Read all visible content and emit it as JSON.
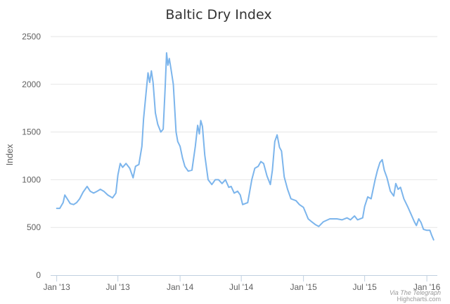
{
  "chart_data": {
    "type": "line",
    "title": "Baltic Dry Index",
    "ylabel": "Index",
    "ylim": [
      0,
      2500
    ],
    "yticks": [
      0,
      500,
      1000,
      1500,
      2000,
      2500
    ],
    "grid": "horizontal",
    "legend": "none",
    "line_color": "#7cb5ec",
    "xticks": [
      {
        "label": "Jan '13",
        "x": "2013-01-01"
      },
      {
        "label": "Jul '13",
        "x": "2013-07-01"
      },
      {
        "label": "Jan '14",
        "x": "2014-01-01"
      },
      {
        "label": "Jul '14",
        "x": "2014-07-01"
      },
      {
        "label": "Jan '15",
        "x": "2015-01-01"
      },
      {
        "label": "Jul '15",
        "x": "2015-07-01"
      },
      {
        "label": "Jan '16",
        "x": "2016-01-01"
      }
    ],
    "series": [
      {
        "points": [
          [
            "2013-01-01",
            700
          ],
          [
            "2013-01-10",
            700
          ],
          [
            "2013-01-20",
            760
          ],
          [
            "2013-01-25",
            840
          ],
          [
            "2013-02-01",
            800
          ],
          [
            "2013-02-10",
            750
          ],
          [
            "2013-02-20",
            740
          ],
          [
            "2013-03-01",
            760
          ],
          [
            "2013-03-10",
            800
          ],
          [
            "2013-03-20",
            870
          ],
          [
            "2013-04-01",
            930
          ],
          [
            "2013-04-10",
            880
          ],
          [
            "2013-04-20",
            860
          ],
          [
            "2013-05-01",
            880
          ],
          [
            "2013-05-10",
            900
          ],
          [
            "2013-05-20",
            880
          ],
          [
            "2013-06-01",
            840
          ],
          [
            "2013-06-15",
            810
          ],
          [
            "2013-06-25",
            860
          ],
          [
            "2013-07-01",
            1050
          ],
          [
            "2013-07-08",
            1170
          ],
          [
            "2013-07-15",
            1130
          ],
          [
            "2013-07-25",
            1170
          ],
          [
            "2013-08-05",
            1120
          ],
          [
            "2013-08-15",
            1020
          ],
          [
            "2013-08-22",
            1140
          ],
          [
            "2013-09-01",
            1160
          ],
          [
            "2013-09-10",
            1350
          ],
          [
            "2013-09-15",
            1640
          ],
          [
            "2013-09-22",
            1900
          ],
          [
            "2013-09-28",
            2120
          ],
          [
            "2013-10-03",
            2020
          ],
          [
            "2013-10-08",
            2140
          ],
          [
            "2013-10-13",
            2020
          ],
          [
            "2013-10-20",
            1700
          ],
          [
            "2013-10-27",
            1580
          ],
          [
            "2013-11-05",
            1500
          ],
          [
            "2013-11-12",
            1530
          ],
          [
            "2013-11-18",
            1980
          ],
          [
            "2013-11-22",
            2330
          ],
          [
            "2013-11-26",
            2200
          ],
          [
            "2013-11-30",
            2270
          ],
          [
            "2013-12-05",
            2160
          ],
          [
            "2013-12-12",
            2000
          ],
          [
            "2013-12-20",
            1500
          ],
          [
            "2013-12-25",
            1400
          ],
          [
            "2014-01-01",
            1350
          ],
          [
            "2014-01-08",
            1230
          ],
          [
            "2014-01-15",
            1140
          ],
          [
            "2014-01-25",
            1090
          ],
          [
            "2014-02-05",
            1100
          ],
          [
            "2014-02-15",
            1350
          ],
          [
            "2014-02-22",
            1570
          ],
          [
            "2014-02-27",
            1480
          ],
          [
            "2014-03-03",
            1620
          ],
          [
            "2014-03-08",
            1560
          ],
          [
            "2014-03-15",
            1260
          ],
          [
            "2014-03-25",
            1000
          ],
          [
            "2014-04-05",
            950
          ],
          [
            "2014-04-15",
            1000
          ],
          [
            "2014-04-25",
            1000
          ],
          [
            "2014-05-05",
            960
          ],
          [
            "2014-05-15",
            1000
          ],
          [
            "2014-05-25",
            920
          ],
          [
            "2014-06-01",
            930
          ],
          [
            "2014-06-10",
            860
          ],
          [
            "2014-06-20",
            880
          ],
          [
            "2014-06-28",
            840
          ],
          [
            "2014-07-05",
            740
          ],
          [
            "2014-07-20",
            760
          ],
          [
            "2014-08-01",
            1000
          ],
          [
            "2014-08-10",
            1120
          ],
          [
            "2014-08-20",
            1140
          ],
          [
            "2014-08-28",
            1190
          ],
          [
            "2014-09-05",
            1170
          ],
          [
            "2014-09-15",
            1040
          ],
          [
            "2014-09-25",
            950
          ],
          [
            "2014-10-01",
            1100
          ],
          [
            "2014-10-08",
            1400
          ],
          [
            "2014-10-15",
            1470
          ],
          [
            "2014-10-22",
            1340
          ],
          [
            "2014-10-28",
            1300
          ],
          [
            "2014-11-05",
            1030
          ],
          [
            "2014-11-15",
            900
          ],
          [
            "2014-11-25",
            800
          ],
          [
            "2014-12-10",
            780
          ],
          [
            "2014-12-20",
            740
          ],
          [
            "2015-01-01",
            710
          ],
          [
            "2015-01-08",
            650
          ],
          [
            "2015-01-15",
            590
          ],
          [
            "2015-01-25",
            560
          ],
          [
            "2015-02-05",
            530
          ],
          [
            "2015-02-15",
            510
          ],
          [
            "2015-03-01",
            560
          ],
          [
            "2015-03-20",
            590
          ],
          [
            "2015-04-10",
            590
          ],
          [
            "2015-04-25",
            580
          ],
          [
            "2015-05-10",
            600
          ],
          [
            "2015-05-20",
            580
          ],
          [
            "2015-06-01",
            620
          ],
          [
            "2015-06-10",
            580
          ],
          [
            "2015-06-25",
            600
          ],
          [
            "2015-07-01",
            720
          ],
          [
            "2015-07-10",
            820
          ],
          [
            "2015-07-20",
            800
          ],
          [
            "2015-08-01",
            1000
          ],
          [
            "2015-08-08",
            1100
          ],
          [
            "2015-08-15",
            1180
          ],
          [
            "2015-08-22",
            1210
          ],
          [
            "2015-08-28",
            1100
          ],
          [
            "2015-09-05",
            1020
          ],
          [
            "2015-09-15",
            880
          ],
          [
            "2015-09-25",
            830
          ],
          [
            "2015-10-01",
            960
          ],
          [
            "2015-10-08",
            900
          ],
          [
            "2015-10-15",
            920
          ],
          [
            "2015-10-25",
            800
          ],
          [
            "2015-11-05",
            720
          ],
          [
            "2015-11-15",
            640
          ],
          [
            "2015-11-25",
            560
          ],
          [
            "2015-12-01",
            520
          ],
          [
            "2015-12-08",
            590
          ],
          [
            "2015-12-15",
            550
          ],
          [
            "2015-12-22",
            480
          ],
          [
            "2016-01-01",
            470
          ],
          [
            "2016-01-10",
            470
          ],
          [
            "2016-01-15",
            420
          ],
          [
            "2016-01-21",
            370
          ]
        ]
      }
    ]
  },
  "credits": {
    "text": "Highcharts.com",
    "watermark": "Via The Telegraph"
  }
}
